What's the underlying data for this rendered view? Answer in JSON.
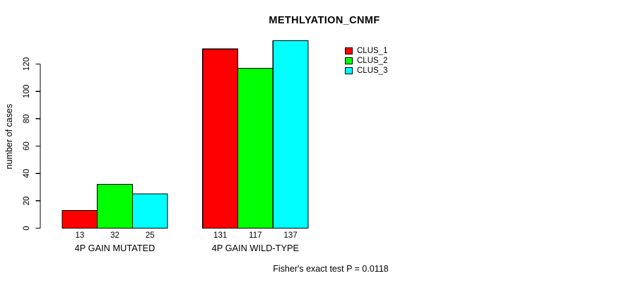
{
  "chart_data": {
    "type": "bar",
    "title": "METHLYATION_CNMF",
    "ylabel": "number of cases",
    "xlabel": "",
    "categories": [
      "4P GAIN MUTATED",
      "4P GAIN WILD-TYPE"
    ],
    "series": [
      {
        "name": "CLUS_1",
        "color": "#ff0000",
        "values": [
          13,
          131
        ]
      },
      {
        "name": "CLUS_2",
        "color": "#00ff00",
        "values": [
          32,
          117
        ]
      },
      {
        "name": "CLUS_3",
        "color": "#00ffff",
        "values": [
          25,
          137
        ]
      }
    ],
    "yticks": [
      0,
      20,
      40,
      60,
      80,
      100,
      120
    ],
    "ylim": [
      0,
      140
    ],
    "grid": false,
    "show_values_under_bars": true,
    "legend_position": "top-right",
    "axis_color": "#000000",
    "text_color": "#000000",
    "annotation": "Fisher's exact test P = 0.0118"
  }
}
